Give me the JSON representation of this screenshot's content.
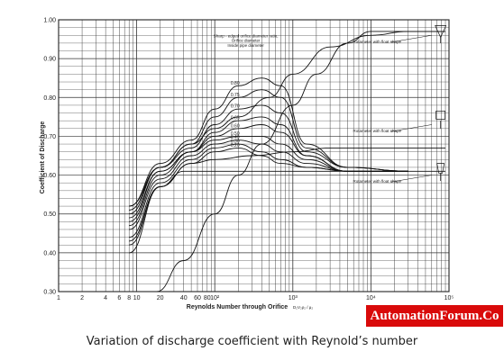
{
  "chart_data": {
    "type": "line",
    "title": "",
    "xlabel": "Reynolds Number through Orifice",
    "xlabel_formula": "D₂V₂ρ₂ / μ₂",
    "ylabel": "Coefficient of Discharge",
    "xscale": "log",
    "xlim": [
      1,
      100000
    ],
    "ylim": [
      0.3,
      1.0
    ],
    "x_tick_labels": [
      {
        "value": 1,
        "label": "1"
      },
      {
        "value": 2,
        "label": "2"
      },
      {
        "value": 4,
        "label": "4"
      },
      {
        "value": 6,
        "label": "6"
      },
      {
        "value": 8,
        "label": "8"
      },
      {
        "value": 10,
        "label": "10"
      },
      {
        "value": 20,
        "label": "20"
      },
      {
        "value": 40,
        "label": "40"
      },
      {
        "value": 60,
        "label": "60"
      },
      {
        "value": 80,
        "label": "80"
      },
      {
        "value": 100,
        "label": "10²"
      },
      {
        "value": 1000,
        "label": "10³"
      },
      {
        "value": 10000,
        "label": "10⁴"
      },
      {
        "value": 100000,
        "label": "10⁵"
      }
    ],
    "y_tick_labels": [
      {
        "value": 1.0,
        "label": "1.00"
      },
      {
        "value": 0.9,
        "label": "0.90"
      },
      {
        "value": 0.8,
        "label": "0.80"
      },
      {
        "value": 0.7,
        "label": "0.70"
      },
      {
        "value": 0.6,
        "label": "0.60"
      },
      {
        "value": 0.5,
        "label": "0.50"
      },
      {
        "value": 0.4,
        "label": "0.40"
      },
      {
        "value": 0.3,
        "label": "0.30"
      }
    ],
    "grid": true,
    "annotations": {
      "orifice_note": [
        "Sharp - edged orifice diameter ratio,",
        "Orifice diameter",
        "Inside pipe diameter"
      ],
      "rotameter_labels": [
        "Rotameter with float shape",
        "Rotameter with float shape",
        "Rotameter with float shape"
      ]
    },
    "series": [
      {
        "name": "0.80",
        "x": [
          8,
          20,
          50,
          100,
          200,
          400,
          700,
          1500,
          5000,
          30000
        ],
        "y": [
          0.52,
          0.63,
          0.69,
          0.77,
          0.83,
          0.85,
          0.83,
          0.68,
          0.62,
          0.61
        ]
      },
      {
        "name": "0.75",
        "x": [
          8,
          20,
          50,
          100,
          200,
          400,
          700,
          1500,
          5000,
          30000
        ],
        "y": [
          0.51,
          0.62,
          0.68,
          0.75,
          0.8,
          0.82,
          0.8,
          0.67,
          0.62,
          0.61
        ]
      },
      {
        "name": "0.70",
        "x": [
          8,
          20,
          50,
          100,
          200,
          400,
          700,
          1500,
          5000,
          30000
        ],
        "y": [
          0.5,
          0.62,
          0.67,
          0.73,
          0.77,
          0.78,
          0.76,
          0.66,
          0.62,
          0.61
        ]
      },
      {
        "name": "0.65",
        "x": [
          8,
          20,
          50,
          100,
          200,
          400,
          700,
          1500,
          5000,
          30000
        ],
        "y": [
          0.49,
          0.61,
          0.66,
          0.71,
          0.74,
          0.75,
          0.73,
          0.65,
          0.61,
          0.61
        ]
      },
      {
        "name": "0.60",
        "x": [
          8,
          20,
          50,
          100,
          200,
          400,
          700,
          1500,
          5000,
          30000
        ],
        "y": [
          0.48,
          0.61,
          0.66,
          0.7,
          0.72,
          0.73,
          0.71,
          0.65,
          0.61,
          0.61
        ]
      },
      {
        "name": "0.50",
        "x": [
          8,
          20,
          50,
          100,
          200,
          400,
          700,
          1500,
          5000,
          30000
        ],
        "y": [
          0.47,
          0.6,
          0.66,
          0.69,
          0.7,
          0.7,
          0.68,
          0.64,
          0.61,
          0.61
        ]
      },
      {
        "name": "0.40",
        "x": [
          8,
          20,
          50,
          100,
          200,
          400,
          700,
          1500,
          5000,
          30000
        ],
        "y": [
          0.46,
          0.59,
          0.65,
          0.68,
          0.69,
          0.68,
          0.66,
          0.63,
          0.61,
          0.61
        ]
      },
      {
        "name": "0.30",
        "x": [
          8,
          20,
          50,
          100,
          200,
          400,
          700,
          1500,
          5000,
          30000
        ],
        "y": [
          0.44,
          0.58,
          0.64,
          0.67,
          0.68,
          0.66,
          0.64,
          0.62,
          0.61,
          0.61
        ]
      },
      {
        "name": "0.20",
        "x": [
          8,
          20,
          50,
          100,
          200,
          400,
          700,
          1500,
          5000,
          30000
        ],
        "y": [
          0.42,
          0.57,
          0.63,
          0.66,
          0.67,
          0.65,
          0.63,
          0.62,
          0.61,
          0.61
        ]
      },
      {
        "name": "",
        "x": [
          8,
          20,
          50,
          100,
          300,
          1000,
          3000,
          10000,
          30000,
          90000
        ],
        "y": [
          0.43,
          0.57,
          0.63,
          0.64,
          0.65,
          0.66,
          0.67,
          0.67,
          0.67,
          0.67
        ]
      },
      {
        "name": "",
        "x": [
          8,
          20,
          50,
          100,
          200,
          500,
          1000,
          3000,
          10000,
          30000,
          90000
        ],
        "y": [
          0.52,
          0.62,
          0.68,
          0.72,
          0.75,
          0.8,
          0.86,
          0.93,
          0.96,
          0.97,
          0.97
        ]
      },
      {
        "name": "",
        "x": [
          8,
          20,
          40,
          100,
          300,
          1000,
          3000,
          10000,
          30000,
          90000
        ],
        "y": [
          0.4,
          0.57,
          0.61,
          0.61,
          0.61,
          0.61,
          0.61,
          0.61,
          0.61,
          0.61
        ]
      },
      {
        "name": "",
        "x": [
          18,
          40,
          100,
          200,
          400,
          1000,
          2000,
          5000,
          10000,
          90000
        ],
        "y": [
          0.3,
          0.38,
          0.5,
          0.6,
          0.68,
          0.78,
          0.86,
          0.94,
          0.97,
          0.97
        ]
      }
    ]
  },
  "branding": {
    "label": "AutomationForum.Co",
    "bg": "#d90a0a"
  },
  "caption": "Variation of discharge coefficient with Reynold’s number"
}
